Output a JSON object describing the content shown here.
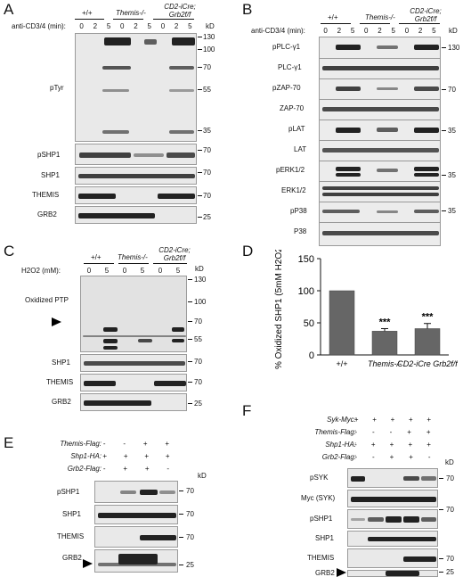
{
  "panel_A": {
    "letter": "A",
    "genotypes": [
      "+/+",
      "Themis-/-",
      "CD2-iCre; Grb2f/f"
    ],
    "treatment_label": "anti-CD3/4 (min):",
    "timepoints": [
      "0",
      "2",
      "5",
      "0",
      "2",
      "5",
      "0",
      "2",
      "5"
    ],
    "kd_label": "kD",
    "blots": [
      "pTyr",
      "pSHP1",
      "SHP1",
      "THEMIS",
      "GRB2"
    ],
    "markers_ptyr": [
      "130",
      "100",
      "70",
      "55",
      "35"
    ],
    "markers_other": [
      "70",
      "70",
      "70",
      "25"
    ]
  },
  "panel_B": {
    "letter": "B",
    "genotypes": [
      "+/+",
      "Themis-/-",
      "CD2-iCre; Grb2f/f"
    ],
    "treatment_label": "anti-CD3/4 (min):",
    "timepoints": [
      "0",
      "2",
      "5",
      "0",
      "2",
      "5",
      "0",
      "2",
      "5"
    ],
    "kd_label": "kD",
    "blots": [
      "pPLC-γ1",
      "PLC-γ1",
      "pZAP-70",
      "ZAP-70",
      "pLAT",
      "LAT",
      "pERK1/2",
      "ERK1/2",
      "pP38",
      "P38"
    ],
    "markers": [
      "130",
      "70",
      "35",
      "35",
      "35"
    ]
  },
  "panel_C": {
    "letter": "C",
    "genotypes": [
      "+/+",
      "Themis-/-",
      "CD2-iCre; Grb2f/f"
    ],
    "treatment_label": "H2O2 (mM):",
    "timepoints": [
      "0",
      "5",
      "0",
      "5",
      "0",
      "5"
    ],
    "kd_label": "kD",
    "blots": [
      "Oxidized PTP",
      "SHP1",
      "THEMIS",
      "GRB2"
    ],
    "markers": [
      "130",
      "100",
      "70",
      "55",
      "70",
      "70",
      "25"
    ]
  },
  "panel_D": {
    "letter": "D",
    "chart_data": {
      "type": "bar",
      "categories": [
        "+/+",
        "Themis-/-",
        "CD2-iCre Grb2f/f"
      ],
      "values": [
        100,
        37,
        41
      ],
      "errors": [
        0,
        4,
        8
      ],
      "significance": [
        "",
        "***",
        "***"
      ],
      "ylabel": "% Oxidized SHP1 (5mM H2O2)",
      "ylim": [
        0,
        150
      ],
      "yticks": [
        "0",
        "50",
        "100",
        "150"
      ]
    }
  },
  "panel_E": {
    "letter": "E",
    "conditions": [
      {
        "label": "Themis-Flag:",
        "values": [
          "-",
          "-",
          "+",
          "+"
        ]
      },
      {
        "label": "Shp1-HA:",
        "values": [
          "+",
          "+",
          "+",
          "+"
        ]
      },
      {
        "label": "Grb2-Flag:",
        "values": [
          "-",
          "+",
          "+",
          "-"
        ]
      }
    ],
    "kd_label": "kD",
    "blots": [
      "pSHP1",
      "SHP1",
      "THEMIS",
      "GRB2"
    ],
    "markers": [
      "70",
      "70",
      "70",
      "25"
    ]
  },
  "panel_F": {
    "letter": "F",
    "conditions": [
      {
        "label": "Syk-Myc:",
        "values": [
          "+",
          "+",
          "+",
          "+",
          "+"
        ]
      },
      {
        "label": "Themis-Flag:",
        "values": [
          "-",
          "-",
          "-",
          "+",
          "+"
        ]
      },
      {
        "label": "Shp1-HA:",
        "values": [
          "-",
          "+",
          "+",
          "+",
          "+"
        ]
      },
      {
        "label": "Grb2-Flag:",
        "values": [
          "-",
          "-",
          "+",
          "+",
          "-"
        ]
      }
    ],
    "kd_label": "kD",
    "blots": [
      "pSYK",
      "Myc (SYK)",
      "pSHP1",
      "SHP1",
      "THEMIS",
      "GRB2"
    ],
    "markers": [
      "70",
      "70",
      "70",
      "25"
    ]
  }
}
